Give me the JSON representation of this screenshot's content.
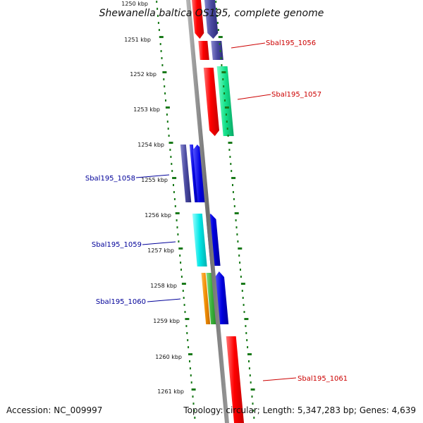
{
  "map": {
    "title": "Shewanella baltica OS195, complete genome",
    "accession": "Accession: NC_009997",
    "topology": "Topology: circular; Length: 5,347,283 bp; Genes: 4,639",
    "tick_labels": [
      "1250 kbp",
      "1251 kbp",
      "1252 kbp",
      "1253 kbp",
      "1254 kbp",
      "1255 kbp",
      "1256 kbp",
      "1257 kbp",
      "1258 kbp",
      "1259 kbp",
      "1260 kbp",
      "1261 kbp"
    ]
  },
  "genes": [
    {
      "label": "Sbal195_1056",
      "color": "#cc0000"
    },
    {
      "label": "Sbal195_1057",
      "color": "#cc0000"
    },
    {
      "label": "Sbal195_1058",
      "color": "#000099"
    },
    {
      "label": "Sbal195_1059",
      "color": "#000099"
    },
    {
      "label": "Sbal195_1060",
      "color": "#000099"
    },
    {
      "label": "Sbal195_1061",
      "color": "#cc0000"
    }
  ],
  "colors": {
    "backbone": "#808080",
    "ticks": "#1a7a1a",
    "red": "#ff1a1a",
    "slate": "#5a5aa8",
    "green_teal": "#2bd98a",
    "blue": "#0a0ad8",
    "cyan": "#19e6e6",
    "orange": "#f08c00",
    "green": "#44bb44"
  }
}
